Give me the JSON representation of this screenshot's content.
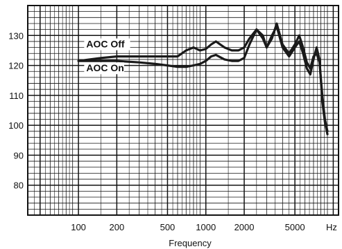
{
  "chart_data": {
    "type": "line",
    "title": "",
    "xlabel": "Frequency",
    "ylabel": "",
    "x_scale": "log",
    "xlim": [
      40,
      11000
    ],
    "ylim": [
      70,
      140
    ],
    "x_unit": "Hz",
    "x_ticks": [
      100,
      200,
      500,
      1000,
      2000,
      5000
    ],
    "y_ticks": [
      80,
      90,
      100,
      110,
      120,
      130
    ],
    "grid": true,
    "series": [
      {
        "name": "AOC Off",
        "points": [
          [
            100,
            121.5
          ],
          [
            150,
            122.5
          ],
          [
            200,
            123
          ],
          [
            300,
            123
          ],
          [
            400,
            123
          ],
          [
            500,
            123
          ],
          [
            600,
            123
          ],
          [
            700,
            125
          ],
          [
            800,
            126
          ],
          [
            900,
            125
          ],
          [
            1000,
            125.5
          ],
          [
            1100,
            127
          ],
          [
            1200,
            128
          ],
          [
            1400,
            126
          ],
          [
            1600,
            125
          ],
          [
            1800,
            125
          ],
          [
            2000,
            126
          ],
          [
            2200,
            129
          ],
          [
            2500,
            132
          ],
          [
            2800,
            129
          ],
          [
            3000,
            126
          ],
          [
            3300,
            129
          ],
          [
            3600,
            134
          ],
          [
            4000,
            127
          ],
          [
            4500,
            124
          ],
          [
            5000,
            127
          ],
          [
            5400,
            130
          ],
          [
            5800,
            126
          ],
          [
            6200,
            121
          ],
          [
            6600,
            119
          ],
          [
            7000,
            123
          ],
          [
            7400,
            124
          ],
          [
            7800,
            121
          ],
          [
            8200,
            110
          ],
          [
            8600,
            102
          ],
          [
            9000,
            98
          ]
        ]
      },
      {
        "name": "AOC On",
        "points": [
          [
            100,
            121.5
          ],
          [
            150,
            121.5
          ],
          [
            200,
            121.5
          ],
          [
            300,
            121
          ],
          [
            400,
            120.5
          ],
          [
            500,
            120
          ],
          [
            600,
            119.5
          ],
          [
            700,
            119.5
          ],
          [
            800,
            120
          ],
          [
            900,
            120.5
          ],
          [
            1000,
            121.5
          ],
          [
            1100,
            123
          ],
          [
            1200,
            123.5
          ],
          [
            1400,
            122
          ],
          [
            1600,
            121.5
          ],
          [
            1800,
            121.5
          ],
          [
            2000,
            122.5
          ],
          [
            2200,
            127
          ],
          [
            2500,
            132
          ],
          [
            2800,
            130
          ],
          [
            3000,
            126
          ],
          [
            3300,
            130
          ],
          [
            3600,
            133
          ],
          [
            4000,
            126
          ],
          [
            4500,
            123
          ],
          [
            5000,
            126
          ],
          [
            5400,
            128
          ],
          [
            5800,
            124
          ],
          [
            6200,
            119
          ],
          [
            6600,
            117
          ],
          [
            7000,
            122
          ],
          [
            7400,
            126
          ],
          [
            7800,
            122
          ],
          [
            8200,
            108
          ],
          [
            8600,
            101
          ],
          [
            9000,
            97
          ]
        ]
      }
    ],
    "annotations": [
      {
        "text": "AOC Off",
        "near_series": "AOC Off",
        "at": [
          200,
          126
        ]
      },
      {
        "text": "AOC On",
        "near_series": "AOC On",
        "at": [
          200,
          118
        ]
      }
    ]
  }
}
